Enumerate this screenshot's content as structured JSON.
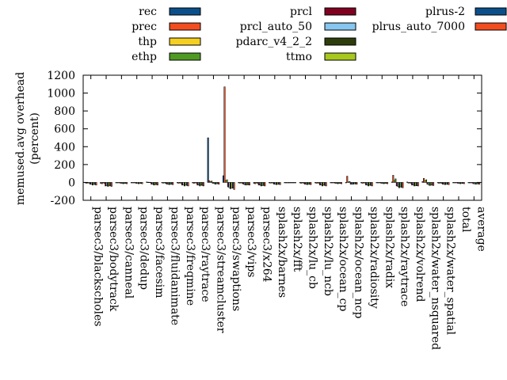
{
  "chart_data": {
    "type": "bar",
    "ylabel": "memused.avg overhead",
    "ylabel_line2": "(percent)",
    "ylim": [
      -200,
      1200
    ],
    "yticks": [
      -200,
      0,
      200,
      400,
      600,
      800,
      1000,
      1200
    ],
    "legend_placement": "top",
    "categories": [
      "parsec3/blackscholes",
      "parsec3/bodytrack",
      "parsec3/canneal",
      "parsec3/dedup",
      "parsec3/facesim",
      "parsec3/fluidanimate",
      "parsec3/freqmine",
      "parsec3/raytrace",
      "parsec3/streamcluster",
      "parsec3/swaptions",
      "parsec3/vips",
      "parsec3/x264",
      "splash2x/barnes",
      "splash2x/fft",
      "splash2x/lu_cb",
      "splash2x/lu_ncb",
      "splash2x/ocean_cp",
      "splash2x/ocean_ncp",
      "splash2x/radiosity",
      "splash2x/radix",
      "splash2x/raytrace",
      "splash2x/volrend",
      "splash2x/water_nsquared",
      "splash2x/water_spatial",
      "total",
      "average"
    ],
    "series": [
      {
        "name": "rec",
        "color": "#0b4f8a",
        "values": [
          -5,
          -10,
          -3,
          -2,
          5,
          -5,
          -5,
          -5,
          500,
          75,
          -5,
          -10,
          -5,
          -2,
          -5,
          -5,
          -3,
          -5,
          -5,
          -3,
          5,
          5,
          10,
          -5,
          -2,
          -2
        ]
      },
      {
        "name": "prec",
        "color": "#f24c1f",
        "values": [
          -10,
          -15,
          -3,
          -3,
          3,
          -8,
          -10,
          -10,
          20,
          1070,
          -8,
          -15,
          -8,
          -2,
          -10,
          -10,
          -5,
          70,
          -10,
          -5,
          80,
          -8,
          45,
          -10,
          -5,
          -5
        ]
      },
      {
        "name": "thp",
        "color": "#f5d020",
        "values": [
          -5,
          -5,
          -2,
          -2,
          2,
          -5,
          -5,
          -5,
          10,
          20,
          -5,
          -5,
          -5,
          -2,
          -5,
          -5,
          -3,
          5,
          -5,
          -3,
          20,
          -5,
          20,
          -5,
          -3,
          -3
        ]
      },
      {
        "name": "ethp",
        "color": "#4f9a22",
        "values": [
          -8,
          -10,
          -3,
          -3,
          2,
          -10,
          -10,
          -8,
          15,
          30,
          -10,
          -10,
          -8,
          -3,
          -8,
          -10,
          -5,
          10,
          -8,
          -5,
          40,
          -10,
          30,
          -10,
          -5,
          -5
        ]
      },
      {
        "name": "prcl",
        "color": "#800020",
        "values": [
          -20,
          -40,
          -10,
          -10,
          -20,
          -20,
          -30,
          -30,
          -10,
          -50,
          -20,
          -30,
          -20,
          -5,
          -20,
          -30,
          -10,
          -20,
          -30,
          -10,
          -40,
          -30,
          -20,
          -20,
          -10,
          -15
        ]
      },
      {
        "name": "prcl_auto_50",
        "color": "#87c6f0",
        "values": [
          -20,
          -35,
          -10,
          -10,
          -20,
          -20,
          -30,
          -30,
          -10,
          -60,
          -25,
          -30,
          -20,
          -5,
          -20,
          -30,
          -10,
          -20,
          -30,
          -10,
          -45,
          -30,
          -25,
          -20,
          -10,
          -15
        ]
      },
      {
        "name": "pdarc_v4_2_2",
        "color": "#2e3d0c",
        "values": [
          -30,
          -45,
          -15,
          -15,
          -30,
          -25,
          -40,
          -40,
          -20,
          -70,
          -30,
          -40,
          -25,
          -5,
          -25,
          -40,
          -15,
          -20,
          -40,
          -15,
          -60,
          -40,
          -35,
          -25,
          -15,
          -20
        ]
      },
      {
        "name": "ttmo",
        "color": "#a8c81e",
        "values": [
          -20,
          -35,
          -10,
          -10,
          -25,
          -20,
          -30,
          -30,
          -15,
          -60,
          -25,
          -35,
          -20,
          -5,
          -20,
          -30,
          -10,
          -15,
          -30,
          -10,
          -50,
          -35,
          -30,
          -20,
          -10,
          -15
        ]
      },
      {
        "name": "plrus-2",
        "color": "#0b4f8a",
        "values": [
          -25,
          -40,
          -12,
          -12,
          -25,
          -22,
          -35,
          -35,
          -15,
          -65,
          -28,
          -35,
          -22,
          -5,
          -22,
          -35,
          -12,
          -18,
          -35,
          -12,
          -55,
          -38,
          -32,
          -22,
          -12,
          -18
        ]
      },
      {
        "name": "plrus_auto_7000",
        "color": "#f24c1f",
        "values": [
          -30,
          -45,
          -15,
          -15,
          -30,
          -25,
          -40,
          -40,
          -20,
          -80,
          -30,
          -40,
          -25,
          -5,
          -25,
          -40,
          -15,
          -20,
          -40,
          -15,
          -60,
          -40,
          -35,
          -25,
          -15,
          -20
        ]
      }
    ]
  }
}
